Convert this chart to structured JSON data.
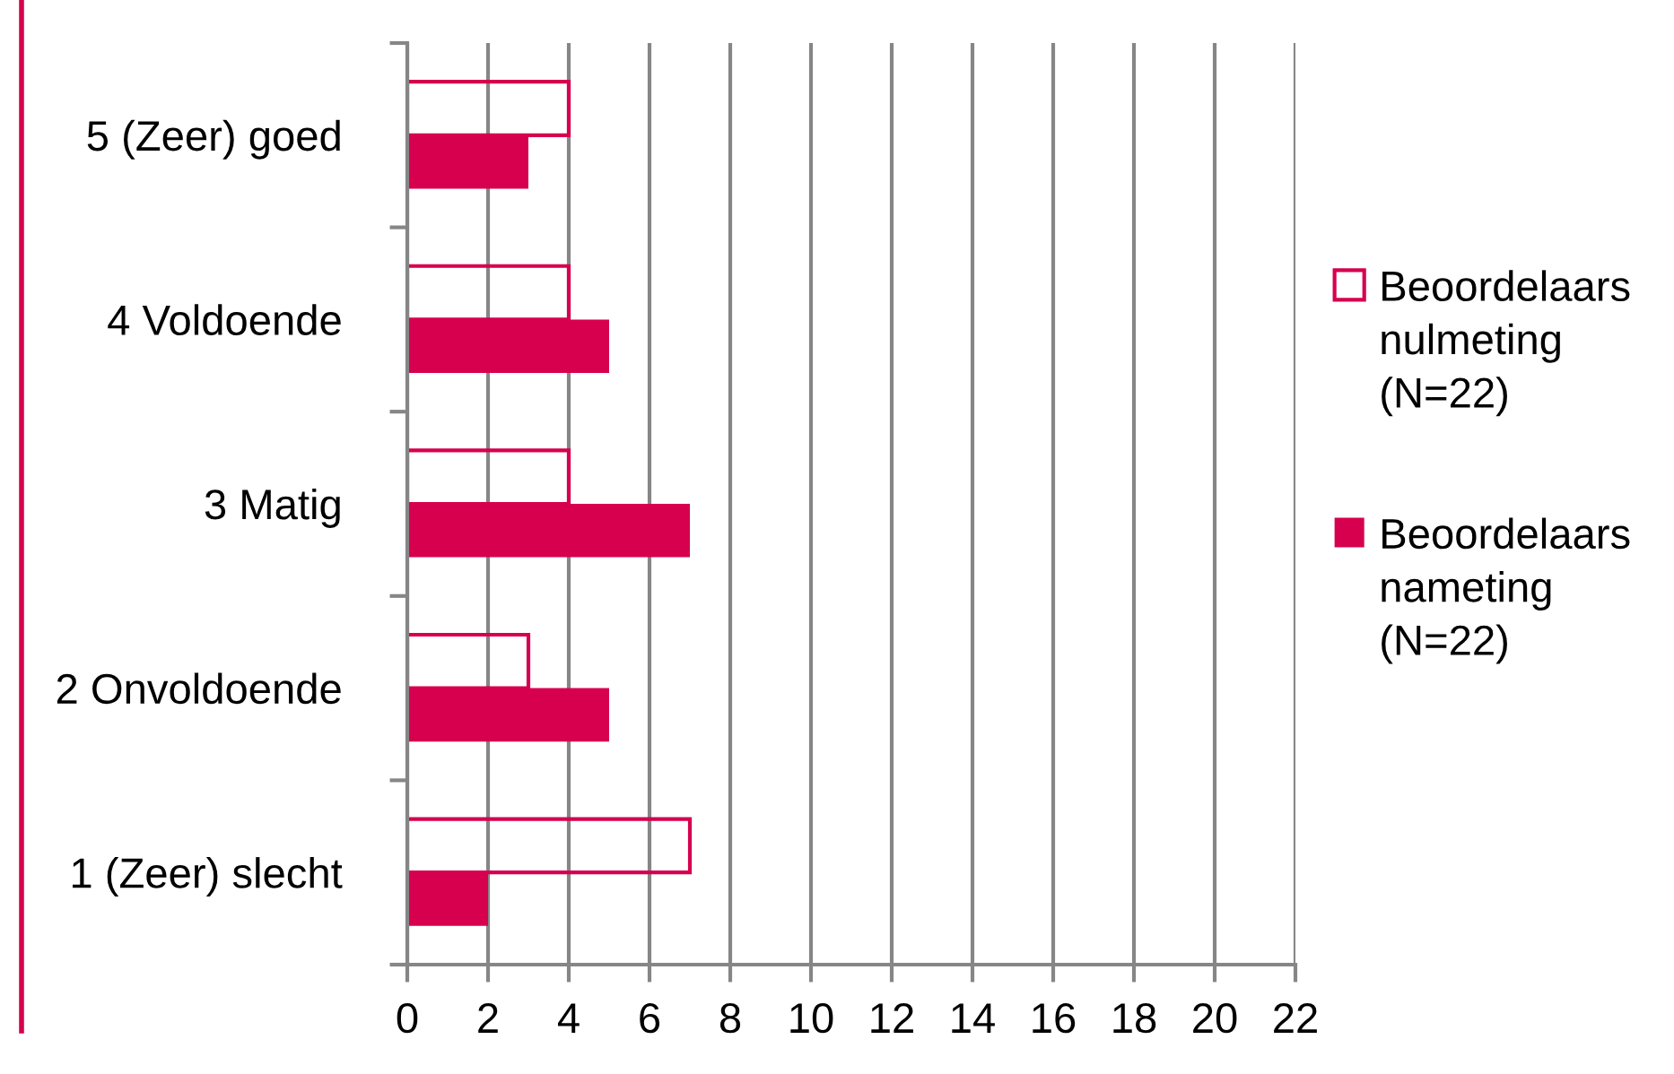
{
  "chart_data": {
    "type": "bar",
    "orientation": "horizontal",
    "categories": [
      "5 (Zeer) goed",
      "4 Voldoende",
      "3 Matig",
      "2 Onvoldoende",
      "1 (Zeer) slecht"
    ],
    "series": [
      {
        "name": "Beoordelaars\nnulmeting\n(N=22)",
        "color": "#d6004f",
        "line_style": "solid",
        "values": [
          4,
          4,
          4,
          3,
          7
        ]
      },
      {
        "name": "Beoordelaars\nnameting\n(N=22)",
        "color": "#d6004f",
        "values": [
          3,
          5,
          7,
          5,
          2
        ]
      }
    ],
    "xlim": [
      0,
      22
    ],
    "xticks": [
      0,
      2,
      4,
      6,
      8,
      10,
      12,
      14,
      16,
      18,
      20,
      22
    ],
    "grid": "x",
    "legend": "right"
  }
}
